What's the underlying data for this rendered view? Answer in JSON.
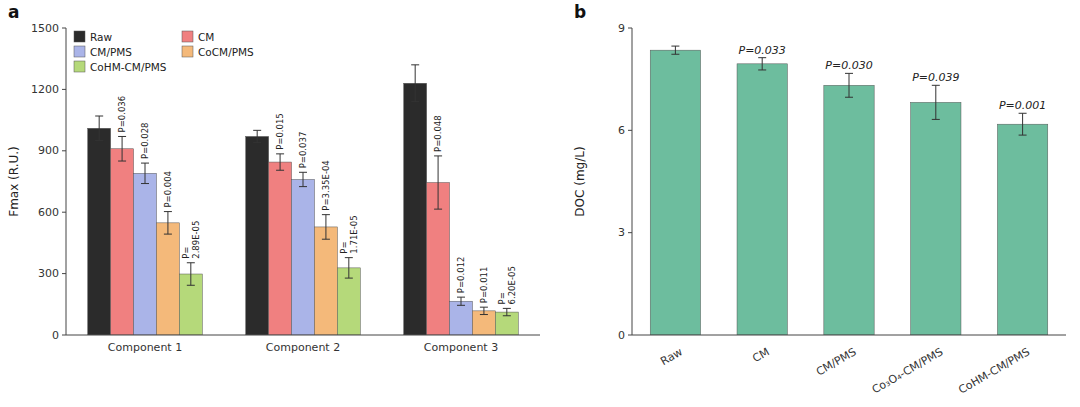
{
  "chart_data": [
    {
      "type": "bar",
      "title": "a",
      "categories": [
        "Component 1",
        "Component 2",
        "Component 3"
      ],
      "series": [
        {
          "name": "Raw",
          "color": "#2b2b2b",
          "values": [
            1010,
            970,
            1230
          ],
          "errors": [
            60,
            30,
            90
          ]
        },
        {
          "name": "CM",
          "color": "#f08080",
          "values": [
            910,
            845,
            745
          ],
          "errors": [
            60,
            40,
            130
          ],
          "annotations": [
            "P=0.036",
            "P=0.015",
            "P=0.048"
          ]
        },
        {
          "name": "CM/PMS",
          "color": "#aab4e8",
          "values": [
            790,
            760,
            165
          ],
          "errors": [
            50,
            35,
            20
          ],
          "annotations": [
            "P=0.028",
            "P=0.037",
            "P=0.012"
          ]
        },
        {
          "name": "CoCM/PMS",
          "color": "#f4b97a",
          "values": [
            548,
            528,
            118
          ],
          "errors": [
            55,
            60,
            18
          ],
          "annotations": [
            "P=0.004",
            "P=3.35E-04",
            "P=0.011"
          ]
        },
        {
          "name": "CoHM-CM/PMS",
          "color": "#b5d97a",
          "values": [
            298,
            328,
            112
          ],
          "errors": [
            55,
            50,
            18
          ],
          "annotations": [
            "P=\n2.89E-05",
            "P=\n1.71E-05",
            "P=\n6.20E-05"
          ]
        }
      ],
      "ylabel": "Fmax (R.U.)",
      "ylim": [
        0,
        1500
      ],
      "yticks": [
        0,
        300,
        600,
        900,
        1200,
        1500
      ],
      "legend": "upper left",
      "grid": false
    },
    {
      "type": "bar",
      "title": "b",
      "categories": [
        "Raw",
        "CM",
        "CM/PMS",
        "Co₃O₄-CM/PMS",
        "CoHM-CM/PMS"
      ],
      "values": [
        8.35,
        7.95,
        7.32,
        6.82,
        6.18
      ],
      "errors": [
        0.12,
        0.18,
        0.35,
        0.5,
        0.32
      ],
      "annotations": [
        null,
        "P=0.033",
        "P=0.030",
        "P=0.039",
        "P=0.001"
      ],
      "color": "#6dbd9e",
      "ylabel": "DOC (mg/L)",
      "ylim": [
        0,
        9
      ],
      "yticks": [
        0,
        3,
        6,
        9
      ],
      "grid": false
    }
  ]
}
